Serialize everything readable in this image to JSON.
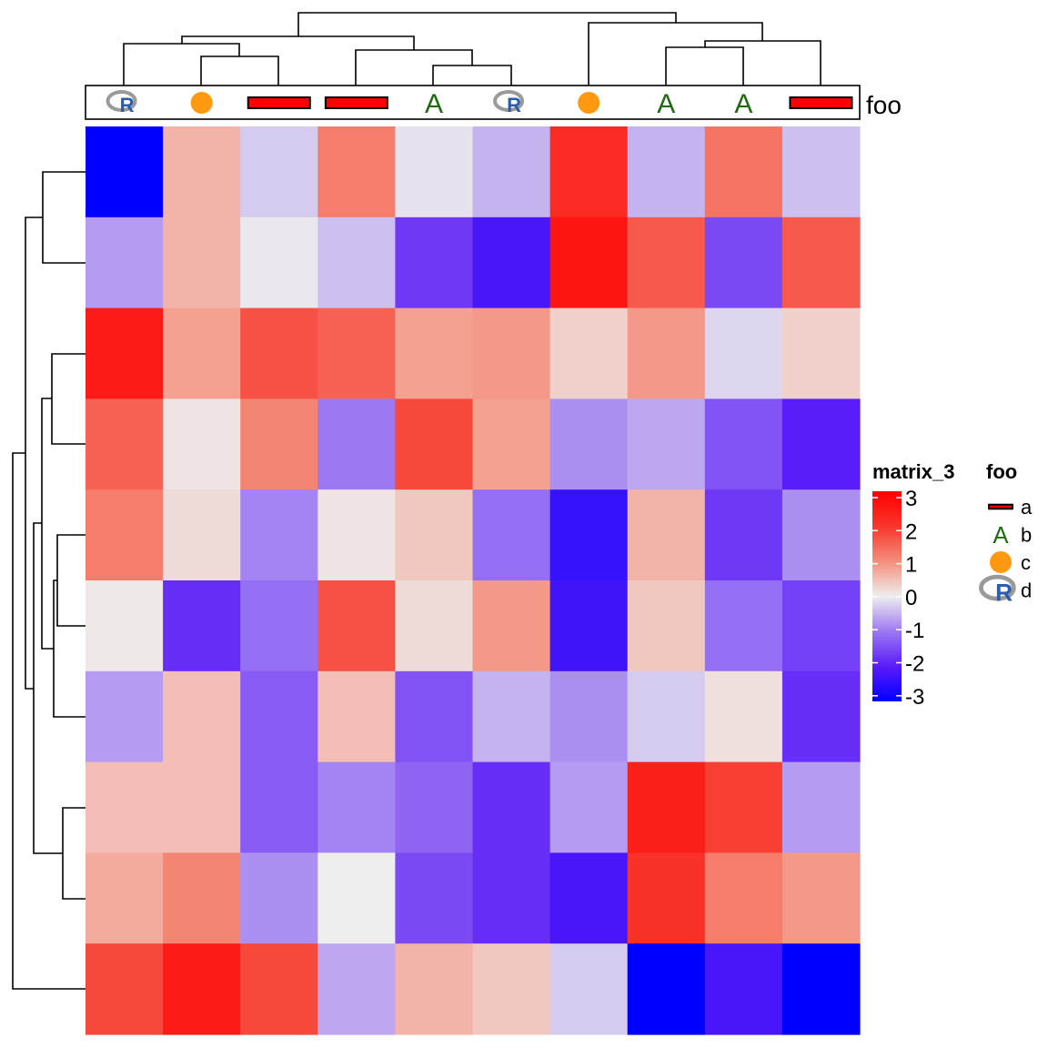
{
  "chart_data": {
    "type": "heatmap",
    "title": "",
    "rows": 10,
    "columns": 10,
    "values": [
      [
        -3.0,
        0.6,
        -0.3,
        1.2,
        -0.1,
        -0.5,
        2.2,
        -0.5,
        1.3,
        -0.4
      ],
      [
        -0.7,
        0.6,
        -0.05,
        -0.4,
        -1.7,
        -2.2,
        2.6,
        1.6,
        -1.5,
        1.6
      ],
      [
        2.5,
        0.8,
        1.7,
        1.5,
        0.8,
        0.9,
        0.3,
        0.9,
        -0.2,
        0.3
      ],
      [
        1.5,
        0.1,
        1.1,
        -1.0,
        1.8,
        0.8,
        -0.8,
        -0.6,
        -1.4,
        -2.0
      ],
      [
        1.2,
        0.2,
        -0.9,
        0.1,
        0.4,
        -1.1,
        -2.4,
        0.6,
        -1.7,
        -0.8
      ],
      [
        0.05,
        -1.8,
        -1.1,
        1.7,
        0.2,
        0.9,
        -2.3,
        0.4,
        -1.1,
        -1.6
      ],
      [
        -0.7,
        0.5,
        -1.3,
        0.5,
        -1.4,
        -0.5,
        -0.8,
        -0.3,
        0.15,
        -1.8
      ],
      [
        0.5,
        0.5,
        -1.3,
        -0.9,
        -1.2,
        -1.8,
        -0.7,
        2.4,
        1.9,
        -0.7
      ],
      [
        0.7,
        1.1,
        -0.8,
        0.0,
        -1.5,
        -1.8,
        -2.2,
        2.1,
        1.2,
        0.9
      ],
      [
        1.8,
        2.5,
        1.8,
        -0.6,
        0.6,
        0.4,
        -0.3,
        -3.0,
        -2.2,
        -3.0
      ]
    ],
    "color_scale": {
      "min": -3,
      "mid": 0,
      "max": 3,
      "low": "#0000FF",
      "midcolor": "#EEEEEE",
      "high": "#FF0000"
    },
    "column_annotation": {
      "name": "foo",
      "values": [
        "d",
        "c",
        "a",
        "a",
        "b",
        "d",
        "c",
        "b",
        "b",
        "a"
      ]
    },
    "legends": {
      "heatmap": {
        "title": "matrix_3",
        "ticks": [
          "3",
          "2",
          "1",
          "0",
          "-1",
          "-2",
          "-3"
        ]
      },
      "annotation": {
        "title": "foo",
        "levels": [
          "a",
          "b",
          "c",
          "d"
        ]
      }
    },
    "annotation_symbols": {
      "a": "red-rect",
      "b": "A",
      "c": "orange-dot",
      "d": "R-logo"
    },
    "colors": {
      "rect": "#FF0000",
      "letter": "#1E6B10",
      "dot": "#FF9912",
      "r_blue": "#2A5DAE",
      "r_gray": "#9A9A9A"
    }
  }
}
